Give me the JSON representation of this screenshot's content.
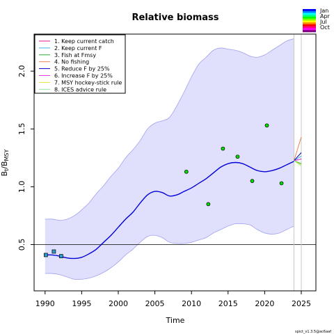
{
  "chart_data": {
    "type": "line",
    "title": "Relative biomass",
    "xlabel": "Time",
    "ylabel_main": "B",
    "ylabel_sub1": "t",
    "ylabel_mid": "/B",
    "ylabel_sub2": "MSY",
    "xlim": [
      1988.5,
      2027
    ],
    "ylim": [
      0.1,
      2.32
    ],
    "x_ticks": [
      1990,
      1995,
      2000,
      2005,
      2010,
      2015,
      2020,
      2025
    ],
    "y_ticks": [
      0.5,
      1.0,
      1.5,
      2.0
    ],
    "x_tick_labels": [
      "1990",
      "1995",
      "2000",
      "2005",
      "2010",
      "2015",
      "2020",
      "2025"
    ],
    "y_tick_labels": [
      "0.5",
      "1.0",
      "1.5",
      "2.0"
    ],
    "reference_line_y": 0.5,
    "vertical_lines_x": [
      2024,
      2025
    ],
    "estimate": {
      "x": [
        1990,
        1991,
        1992,
        1993,
        1994,
        1995,
        1996,
        1997,
        1998,
        1999,
        2000,
        2001,
        2002,
        2003,
        2004,
        2005,
        2006,
        2007,
        2008,
        2009,
        2010,
        2011,
        2012,
        2013,
        2014,
        2015,
        2016,
        2017,
        2018,
        2019,
        2020,
        2021,
        2022,
        2023,
        2024
      ],
      "y": [
        0.41,
        0.41,
        0.4,
        0.385,
        0.38,
        0.39,
        0.42,
        0.46,
        0.52,
        0.58,
        0.65,
        0.72,
        0.78,
        0.86,
        0.93,
        0.96,
        0.95,
        0.92,
        0.93,
        0.96,
        0.99,
        1.03,
        1.07,
        1.12,
        1.17,
        1.2,
        1.21,
        1.2,
        1.17,
        1.14,
        1.13,
        1.14,
        1.16,
        1.19,
        1.22
      ]
    },
    "ci_upper": [
      0.72,
      0.72,
      0.71,
      0.72,
      0.75,
      0.8,
      0.86,
      0.94,
      1.01,
      1.09,
      1.16,
      1.25,
      1.32,
      1.4,
      1.5,
      1.55,
      1.57,
      1.6,
      1.7,
      1.82,
      1.95,
      2.06,
      2.12,
      2.18,
      2.2,
      2.19,
      2.18,
      2.16,
      2.13,
      2.12,
      2.14,
      2.18,
      2.22,
      2.26,
      2.28
    ],
    "ci_lower": [
      0.25,
      0.25,
      0.24,
      0.22,
      0.2,
      0.2,
      0.21,
      0.23,
      0.26,
      0.3,
      0.35,
      0.41,
      0.46,
      0.52,
      0.57,
      0.58,
      0.56,
      0.52,
      0.51,
      0.51,
      0.52,
      0.54,
      0.56,
      0.6,
      0.63,
      0.66,
      0.68,
      0.68,
      0.67,
      0.63,
      0.6,
      0.59,
      0.6,
      0.63,
      0.66
    ],
    "observations": {
      "x": [
        1990.1,
        1991.2,
        1992.2,
        2009.3,
        2012.3,
        2014.3,
        2016.3,
        2018.3,
        2020.3,
        2022.3
      ],
      "y": [
        0.41,
        0.44,
        0.4,
        1.13,
        0.85,
        1.33,
        1.26,
        1.05,
        1.53,
        1.03
      ],
      "colors": [
        "#2e9ad0",
        "#2e9ad0",
        "#2e9ad0",
        "#00dd00",
        "#00dd00",
        "#00dd00",
        "#00dd00",
        "#00dd00",
        "#00dd00",
        "#00dd00"
      ]
    },
    "forecast_start": {
      "x": 2024,
      "y": 1.225
    },
    "forecast_end_x": 2025,
    "series": [
      {
        "name": "1. Keep current catch",
        "color": "#e0148c",
        "end_y": 1.24
      },
      {
        "name": "2. Keep current F",
        "color": "#3ab0f0",
        "end_y": 1.265
      },
      {
        "name": "3. Fish at Fmsy",
        "color": "#20b030",
        "end_y": 1.2
      },
      {
        "name": "4. No fishing",
        "color": "#f08050",
        "end_y": 1.43
      },
      {
        "name": "5. Reduce F by 25%",
        "color": "#0000cc",
        "end_y": 1.295
      },
      {
        "name": "6. Increase F by 25%",
        "color": "#e040e0",
        "end_y": 1.24
      },
      {
        "name": "7. MSY hockey-stick rule",
        "color": "#f0e040",
        "end_y": 1.19
      },
      {
        "name": "8. ICES advice rule",
        "color": "#90f090",
        "end_y": 1.18
      }
    ],
    "colors": {
      "band": "#e0e0fc",
      "band_edge": "#a0a0f0",
      "estimate": "#0000d8"
    }
  },
  "month_legend": {
    "labels": [
      "Jan",
      "Apr",
      "Jul",
      "Oct"
    ],
    "colors": [
      "#0000ff",
      "#0080ff",
      "#00ffff",
      "#00ff80",
      "#00ff00",
      "#80ff00",
      "#ffff00",
      "#ff8000",
      "#ff0000",
      "#ff0080",
      "#ff00ff",
      "#800080"
    ]
  },
  "footer": "spict_v1.3.5@ac6aaf"
}
